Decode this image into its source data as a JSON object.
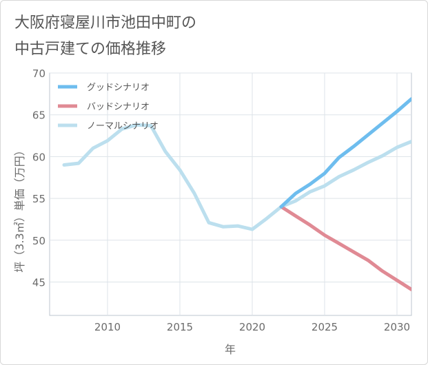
{
  "title_lines": [
    "大阪府寝屋川市池田中町の",
    "中古戸建ての価格推移"
  ],
  "chart_data": {
    "type": "line",
    "title": "大阪府寝屋川市池田中町の中古戸建ての価格推移",
    "xlabel": "年",
    "ylabel": "坪（3.3㎡）単価（万円）",
    "xlim": [
      2006,
      2031
    ],
    "ylim": [
      41,
      70
    ],
    "xticks": [
      2010,
      2015,
      2020,
      2025,
      2030
    ],
    "yticks": [
      45,
      50,
      55,
      60,
      65,
      70
    ],
    "grid": true,
    "legend_position": "top-left",
    "series": [
      {
        "name": "グッドシナリオ",
        "color": "#6ebdee",
        "x": [
          2022,
          2023,
          2024,
          2025,
          2026,
          2027,
          2028,
          2029,
          2030,
          2031
        ],
        "y": [
          54.0,
          55.6,
          56.7,
          58.0,
          59.9,
          61.2,
          62.6,
          64.0,
          65.4,
          66.9
        ]
      },
      {
        "name": "バッドシナリオ",
        "color": "#e08a94",
        "x": [
          2022,
          2023,
          2024,
          2025,
          2026,
          2027,
          2028,
          2029,
          2030,
          2031
        ],
        "y": [
          54.0,
          52.9,
          51.8,
          50.6,
          49.6,
          48.6,
          47.6,
          46.3,
          45.2,
          44.1
        ]
      },
      {
        "name": "ノーマルシナリオ",
        "color": "#bcdfee",
        "x": [
          2007,
          2008,
          2009,
          2010,
          2011,
          2012,
          2013,
          2014,
          2015,
          2016,
          2017,
          2018,
          2019,
          2020,
          2021,
          2022,
          2023,
          2024,
          2025,
          2026,
          2027,
          2028,
          2029,
          2030,
          2031
        ],
        "y": [
          59.0,
          59.2,
          61.0,
          61.9,
          63.3,
          63.8,
          63.7,
          60.6,
          58.4,
          55.6,
          52.1,
          51.6,
          51.7,
          51.3,
          52.6,
          54.0,
          54.7,
          55.8,
          56.5,
          57.6,
          58.4,
          59.3,
          60.1,
          61.1,
          61.8
        ]
      }
    ]
  }
}
